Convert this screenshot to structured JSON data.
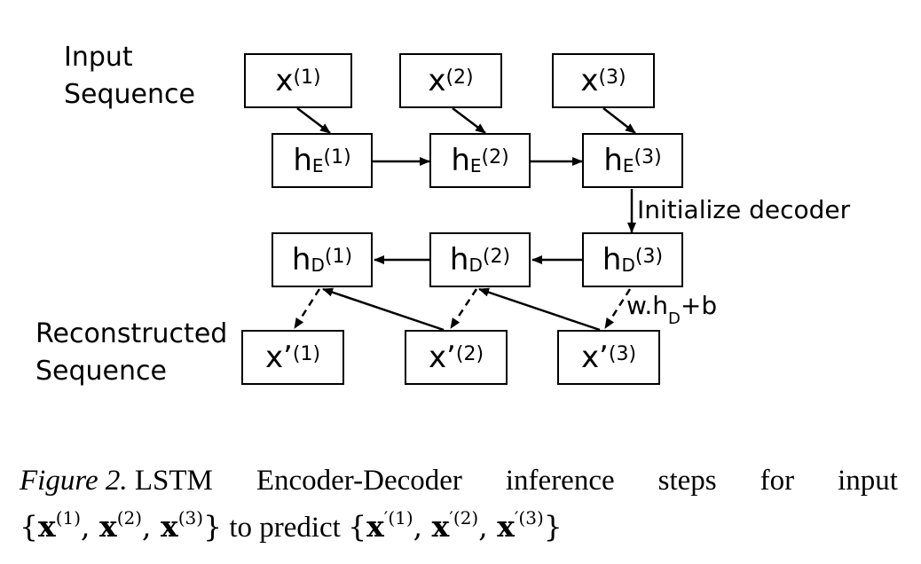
{
  "labels": {
    "input_sequence": [
      "Input",
      "Sequence"
    ],
    "reconstructed_sequence": [
      "Reconstructed",
      "Sequence"
    ]
  },
  "nodes": {
    "x1": {
      "base": "x",
      "sup": "(1)"
    },
    "x2": {
      "base": "x",
      "sup": "(2)"
    },
    "x3": {
      "base": "x",
      "sup": "(3)"
    },
    "hE1": {
      "base": "h",
      "sub": "E",
      "sup": "(1)"
    },
    "hE2": {
      "base": "h",
      "sub": "E",
      "sup": "(2)"
    },
    "hE3": {
      "base": "h",
      "sub": "E",
      "sup": "(3)"
    },
    "hD1": {
      "base": "h",
      "sub": "D",
      "sup": "(1)"
    },
    "hD2": {
      "base": "h",
      "sub": "D",
      "sup": "(2)"
    },
    "hD3": {
      "base": "h",
      "sub": "D",
      "sup": "(3)"
    },
    "xp1": {
      "base": "x’",
      "sup": "(1)"
    },
    "xp2": {
      "base": "x’",
      "sup": "(2)"
    },
    "xp3": {
      "base": "x’",
      "sup": "(3)"
    }
  },
  "edge_labels": {
    "initialize": "Initialize decoder",
    "output_formula": {
      "pre": "w.h",
      "sub": "D",
      "post": "+b"
    }
  },
  "caption": {
    "figure_label": "Figure 2.",
    "words": [
      "LSTM",
      "Encoder-Decoder",
      "inference",
      "steps",
      "for",
      "input"
    ],
    "line2": {
      "open": "{",
      "items": [
        {
          "base": "x",
          "sup": "(1)"
        },
        {
          "base": "x",
          "sup": "(2)"
        },
        {
          "base": "x",
          "sup": "(3)"
        }
      ],
      "close": "}",
      "middle": " to predict ",
      "items2": [
        {
          "base": "x",
          "sup": "′(1)"
        },
        {
          "base": "x",
          "sup": "′(2)"
        },
        {
          "base": "x",
          "sup": "′(3)"
        }
      ]
    }
  }
}
